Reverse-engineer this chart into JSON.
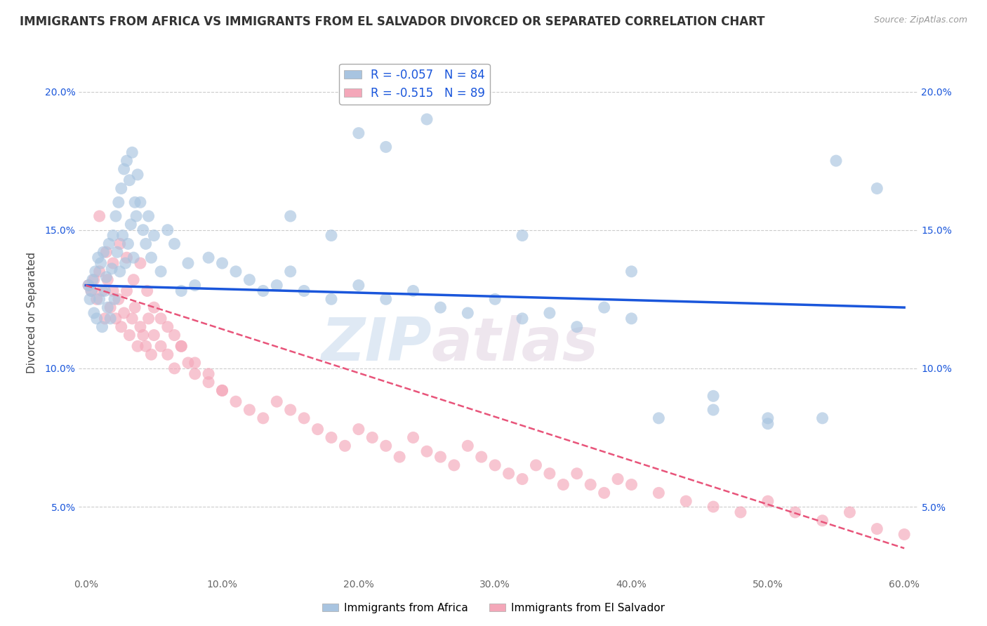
{
  "title": "IMMIGRANTS FROM AFRICA VS IMMIGRANTS FROM EL SALVADOR DIVORCED OR SEPARATED CORRELATION CHART",
  "source": "Source: ZipAtlas.com",
  "ylabel": "Divorced or Separated",
  "legend_labels": [
    "Immigrants from Africa",
    "Immigrants from El Salvador"
  ],
  "r_africa": -0.057,
  "n_africa": 84,
  "r_salvador": -0.515,
  "n_salvador": 89,
  "xlim": [
    -0.005,
    0.61
  ],
  "ylim": [
    0.025,
    0.215
  ],
  "xticks": [
    0.0,
    0.1,
    0.2,
    0.3,
    0.4,
    0.5,
    0.6
  ],
  "yticks": [
    0.05,
    0.1,
    0.15,
    0.2
  ],
  "ytick_labels": [
    "5.0%",
    "10.0%",
    "15.0%",
    "20.0%"
  ],
  "xtick_labels": [
    "0.0%",
    "10.0%",
    "20.0%",
    "30.0%",
    "40.0%",
    "50.0%",
    "60.0%"
  ],
  "color_africa": "#a8c4e0",
  "color_salvador": "#f4a7b9",
  "trendline_africa_color": "#1a56db",
  "trendline_salvador_color": "#e8547a",
  "watermark_zip": "ZIP",
  "watermark_atlas": "atlas",
  "background_color": "#ffffff",
  "grid_color": "#cccccc",
  "africa_trendline_y0": 0.13,
  "africa_trendline_y1": 0.122,
  "salvador_trendline_y0": 0.13,
  "salvador_trendline_y1": 0.035,
  "africa_x": [
    0.002,
    0.003,
    0.004,
    0.005,
    0.006,
    0.007,
    0.008,
    0.009,
    0.01,
    0.011,
    0.012,
    0.013,
    0.014,
    0.015,
    0.016,
    0.017,
    0.018,
    0.019,
    0.02,
    0.021,
    0.022,
    0.023,
    0.024,
    0.025,
    0.026,
    0.027,
    0.028,
    0.029,
    0.03,
    0.031,
    0.032,
    0.033,
    0.034,
    0.035,
    0.036,
    0.037,
    0.038,
    0.04,
    0.042,
    0.044,
    0.046,
    0.048,
    0.05,
    0.055,
    0.06,
    0.065,
    0.07,
    0.075,
    0.08,
    0.09,
    0.1,
    0.11,
    0.12,
    0.13,
    0.14,
    0.15,
    0.16,
    0.18,
    0.2,
    0.22,
    0.24,
    0.26,
    0.28,
    0.3,
    0.32,
    0.34,
    0.36,
    0.38,
    0.4,
    0.42,
    0.46,
    0.5,
    0.54,
    0.58,
    0.2,
    0.25,
    0.15,
    0.18,
    0.22,
    0.32,
    0.4,
    0.46,
    0.5,
    0.55
  ],
  "africa_y": [
    0.13,
    0.125,
    0.128,
    0.132,
    0.12,
    0.135,
    0.118,
    0.14,
    0.125,
    0.138,
    0.115,
    0.142,
    0.128,
    0.133,
    0.122,
    0.145,
    0.118,
    0.136,
    0.148,
    0.125,
    0.155,
    0.142,
    0.16,
    0.135,
    0.165,
    0.148,
    0.172,
    0.138,
    0.175,
    0.145,
    0.168,
    0.152,
    0.178,
    0.14,
    0.16,
    0.155,
    0.17,
    0.16,
    0.15,
    0.145,
    0.155,
    0.14,
    0.148,
    0.135,
    0.15,
    0.145,
    0.128,
    0.138,
    0.13,
    0.14,
    0.138,
    0.135,
    0.132,
    0.128,
    0.13,
    0.135,
    0.128,
    0.125,
    0.13,
    0.125,
    0.128,
    0.122,
    0.12,
    0.125,
    0.118,
    0.12,
    0.115,
    0.122,
    0.118,
    0.082,
    0.085,
    0.08,
    0.082,
    0.165,
    0.185,
    0.19,
    0.155,
    0.148,
    0.18,
    0.148,
    0.135,
    0.09,
    0.082,
    0.175
  ],
  "salvador_x": [
    0.002,
    0.004,
    0.006,
    0.008,
    0.01,
    0.012,
    0.014,
    0.016,
    0.018,
    0.02,
    0.022,
    0.024,
    0.026,
    0.028,
    0.03,
    0.032,
    0.034,
    0.036,
    0.038,
    0.04,
    0.042,
    0.044,
    0.046,
    0.048,
    0.05,
    0.055,
    0.06,
    0.065,
    0.07,
    0.075,
    0.08,
    0.09,
    0.1,
    0.11,
    0.12,
    0.13,
    0.14,
    0.15,
    0.16,
    0.17,
    0.18,
    0.19,
    0.2,
    0.21,
    0.22,
    0.23,
    0.24,
    0.25,
    0.26,
    0.27,
    0.28,
    0.29,
    0.3,
    0.31,
    0.32,
    0.33,
    0.34,
    0.35,
    0.36,
    0.37,
    0.38,
    0.39,
    0.4,
    0.42,
    0.44,
    0.46,
    0.48,
    0.5,
    0.52,
    0.54,
    0.56,
    0.58,
    0.6,
    0.01,
    0.015,
    0.02,
    0.025,
    0.03,
    0.035,
    0.04,
    0.045,
    0.05,
    0.055,
    0.06,
    0.065,
    0.07,
    0.08,
    0.09,
    0.1
  ],
  "salvador_y": [
    0.13,
    0.128,
    0.132,
    0.125,
    0.135,
    0.128,
    0.118,
    0.132,
    0.122,
    0.128,
    0.118,
    0.125,
    0.115,
    0.12,
    0.128,
    0.112,
    0.118,
    0.122,
    0.108,
    0.115,
    0.112,
    0.108,
    0.118,
    0.105,
    0.112,
    0.108,
    0.105,
    0.1,
    0.108,
    0.102,
    0.098,
    0.095,
    0.092,
    0.088,
    0.085,
    0.082,
    0.088,
    0.085,
    0.082,
    0.078,
    0.075,
    0.072,
    0.078,
    0.075,
    0.072,
    0.068,
    0.075,
    0.07,
    0.068,
    0.065,
    0.072,
    0.068,
    0.065,
    0.062,
    0.06,
    0.065,
    0.062,
    0.058,
    0.062,
    0.058,
    0.055,
    0.06,
    0.058,
    0.055,
    0.052,
    0.05,
    0.048,
    0.052,
    0.048,
    0.045,
    0.048,
    0.042,
    0.04,
    0.155,
    0.142,
    0.138,
    0.145,
    0.14,
    0.132,
    0.138,
    0.128,
    0.122,
    0.118,
    0.115,
    0.112,
    0.108,
    0.102,
    0.098,
    0.092
  ]
}
